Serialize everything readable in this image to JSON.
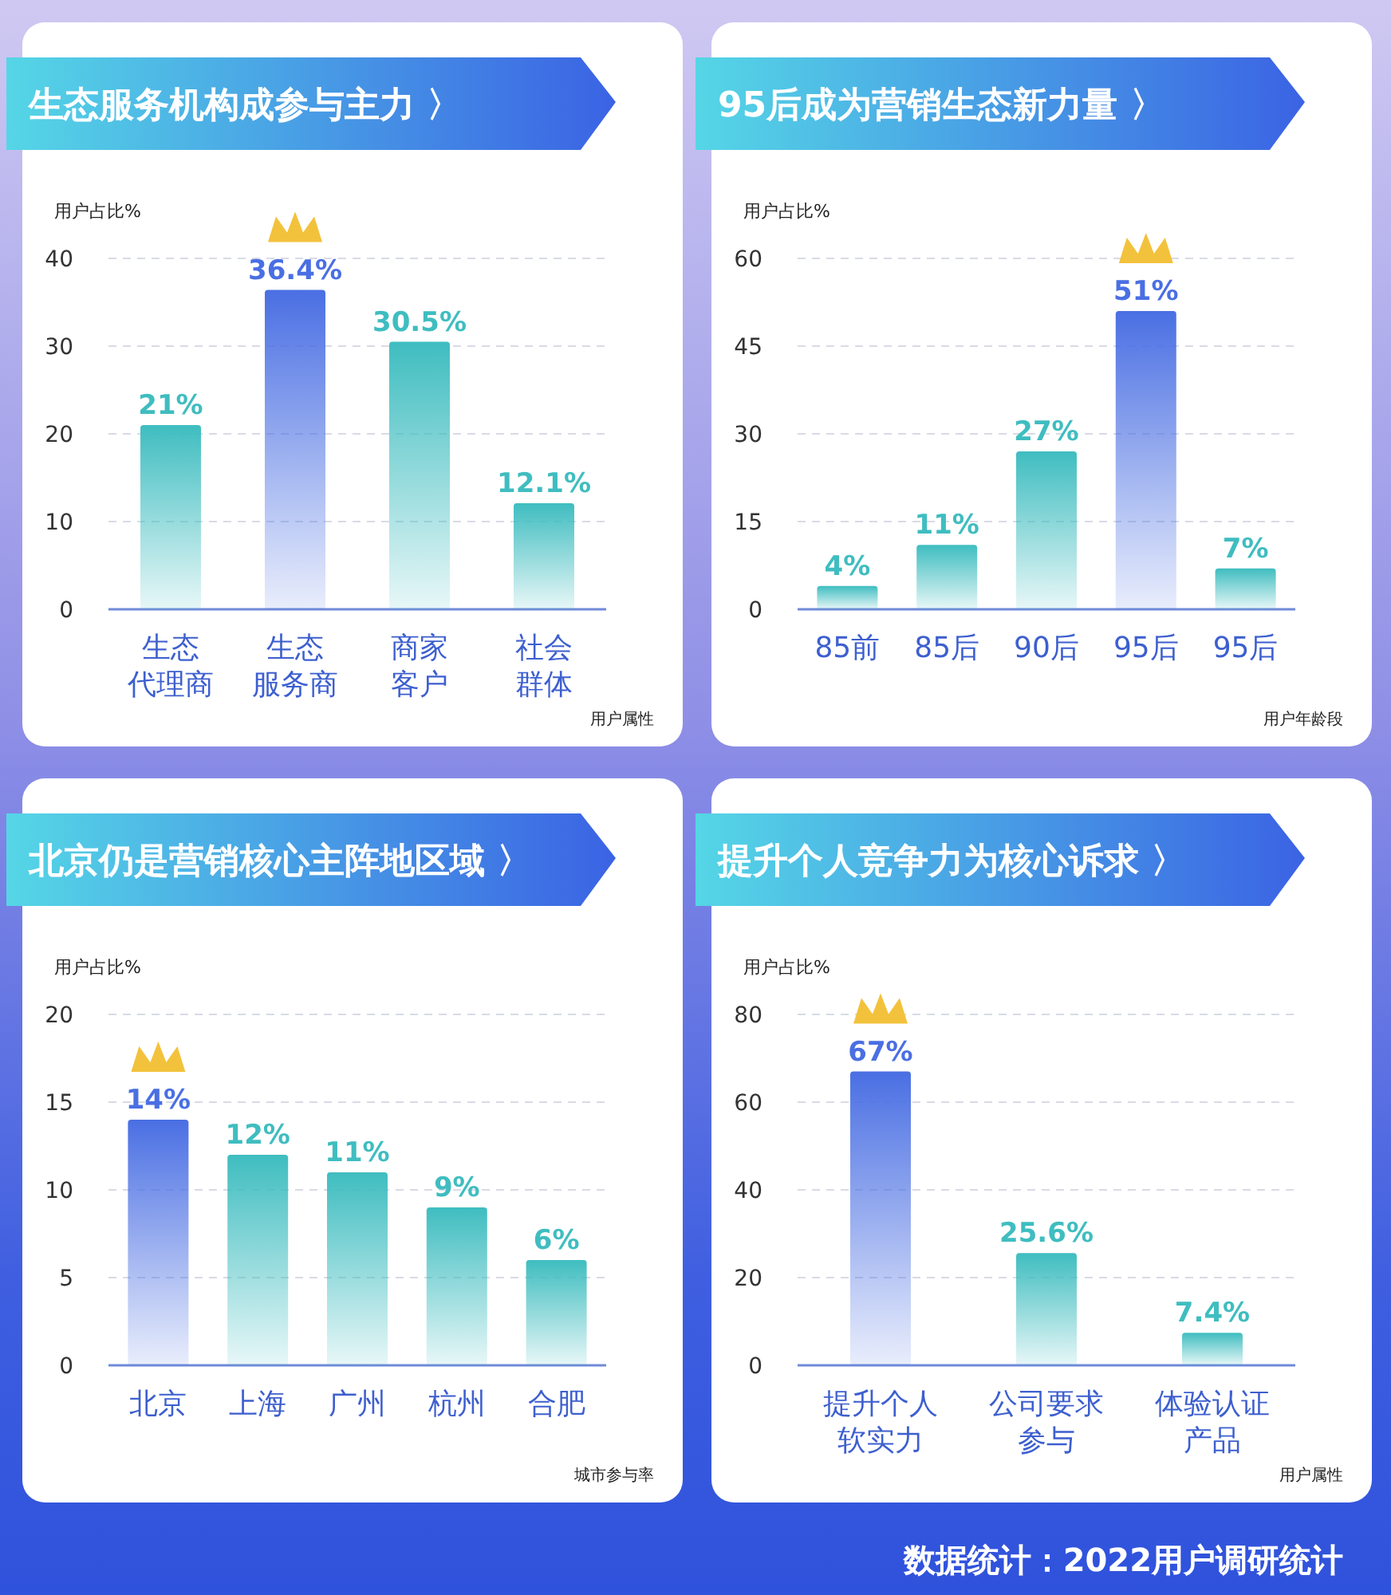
{
  "chart_data": [
    {
      "type": "bar",
      "title": "生态服务机构成参与主力 〉",
      "ylabel": "用户占比%",
      "xlabel": "用户属性",
      "categories": [
        "生态代理商",
        "生态服务商",
        "商家客户",
        "社会群体"
      ],
      "values": [
        21,
        36.4,
        30.5,
        12.1
      ],
      "colors": [
        "#3fbdc0",
        "#4a6fe3",
        "#3fbdc0",
        "#3fbdc0"
      ],
      "value_labels": [
        "21%",
        "36.4%",
        "30.5%",
        "12.1%"
      ],
      "ylim": [
        0,
        40
      ],
      "yticks": [
        0,
        10,
        20,
        30,
        40
      ],
      "grid": "y"
    },
    {
      "type": "bar",
      "title": "95后成为营销生态新力量 〉",
      "ylabel": "用户占比%",
      "xlabel": "用户年龄段",
      "categories": [
        "85前",
        "85后",
        "90后",
        "95后",
        "95后"
      ],
      "values": [
        4,
        11,
        27,
        51,
        7
      ],
      "colors": [
        "#3fbdc0",
        "#3fbdc0",
        "#3fbdc0",
        "#4a6fe3",
        "#3fbdc0"
      ],
      "value_labels": [
        "4%",
        "11%",
        "27%",
        "51%",
        "7%"
      ],
      "ylim": [
        0,
        60
      ],
      "yticks": [
        0,
        15,
        30,
        45,
        60
      ],
      "grid": "y"
    },
    {
      "type": "bar",
      "title": "北京仍是营销核心主阵地区域 〉",
      "ylabel": "用户占比%",
      "xlabel": "城市参与率",
      "categories": [
        "北京",
        "上海",
        "广州",
        "杭州",
        "合肥"
      ],
      "values": [
        14,
        12,
        11,
        9,
        6
      ],
      "colors": [
        "#4a6fe3",
        "#3fbdc0",
        "#3fbdc0",
        "#3fbdc0",
        "#3fbdc0"
      ],
      "value_labels": [
        "14%",
        "12%",
        "11%",
        "9%",
        "6%"
      ],
      "ylim": [
        0,
        20
      ],
      "yticks": [
        0,
        5,
        10,
        15,
        20
      ],
      "grid": "y"
    },
    {
      "type": "bar",
      "title": "提升个人竞争力为核心诉求 〉",
      "ylabel": "用户占比%",
      "xlabel": "用户属性",
      "categories": [
        "提升个人软实力",
        "公司要求参与",
        "体验认证产品"
      ],
      "values": [
        67,
        25.6,
        7.4
      ],
      "colors": [
        "#4a6fe3",
        "#3fbdc0",
        "#3fbdc0"
      ],
      "value_labels": [
        "67%",
        "25.6%",
        "7.4%"
      ],
      "ylim": [
        0,
        80
      ],
      "yticks": [
        0,
        20,
        40,
        60,
        80
      ],
      "grid": "y",
      "annotations": [
        "数据统计：2022用户调研统计"
      ]
    }
  ]
}
